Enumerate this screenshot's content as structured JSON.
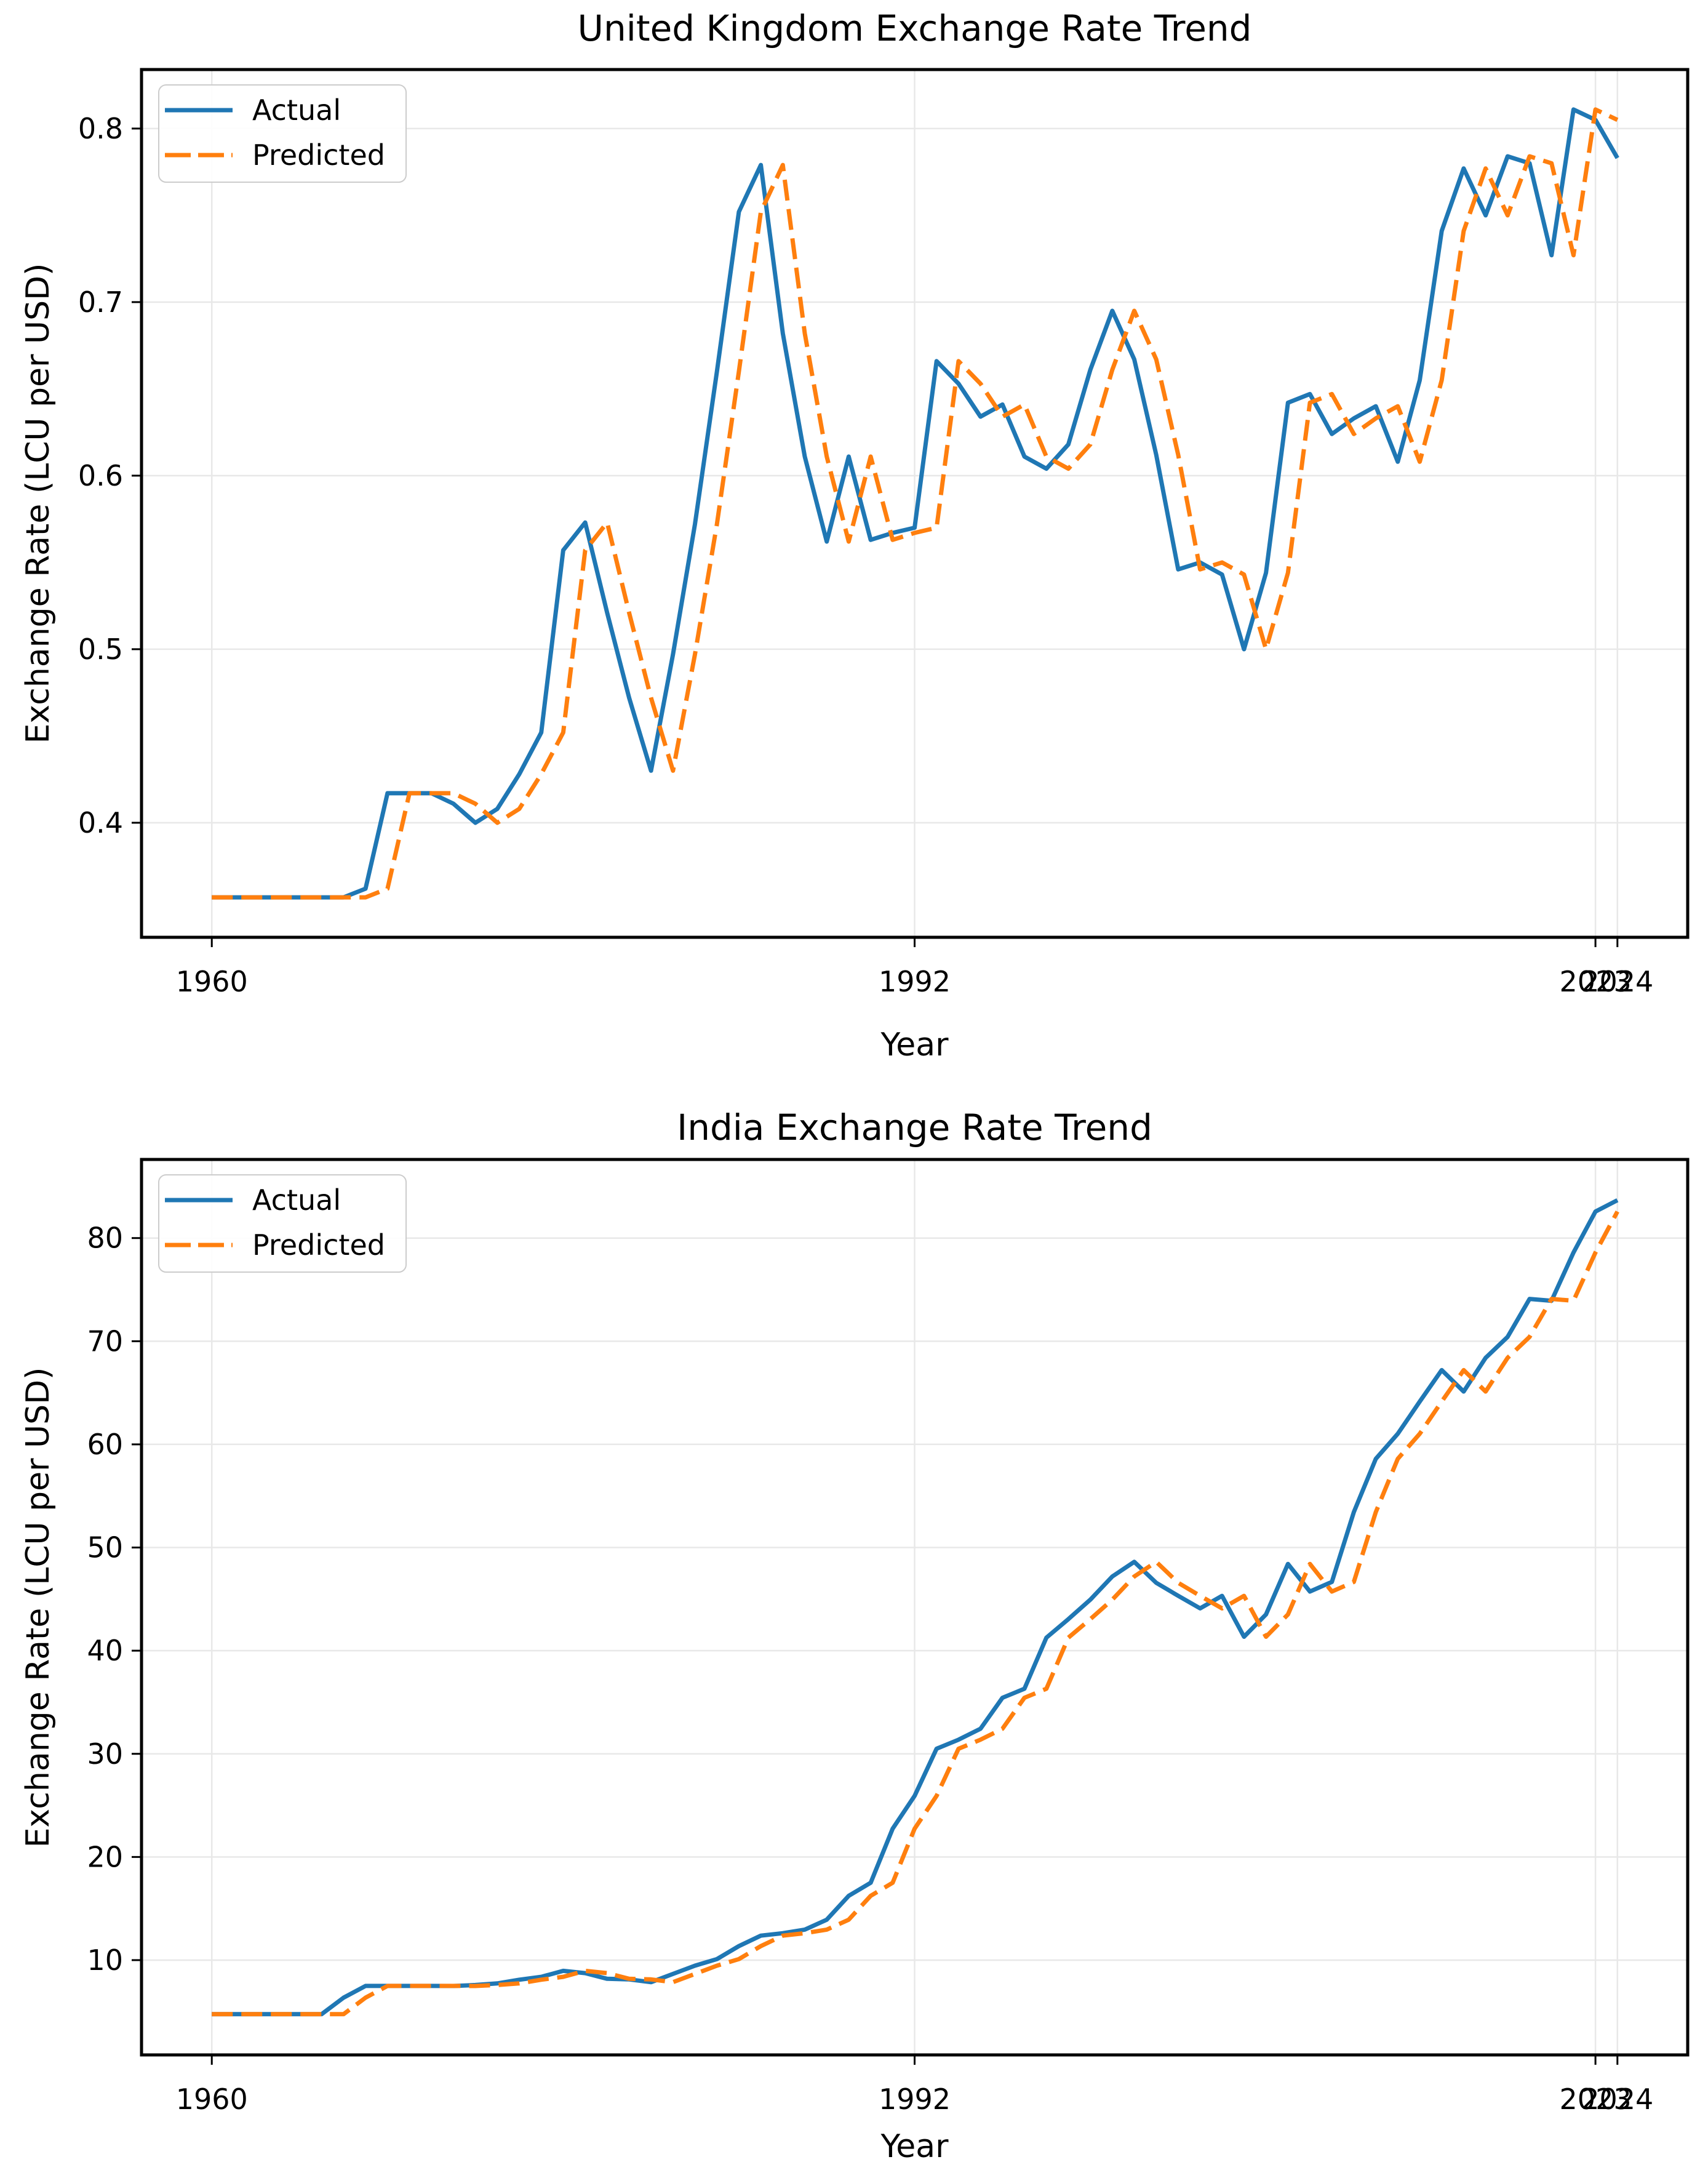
{
  "figure": {
    "background": "#ffffff",
    "grid_color": "#e8e8e8",
    "spine_color": "#000000",
    "actual_color": "#1f77b4",
    "predicted_color": "#ff7f0e"
  },
  "chart_data": [
    {
      "type": "line",
      "title": "United Kingdom Exchange Rate Trend",
      "xlabel": "Year",
      "ylabel": "Exchange Rate (LCU per USD)",
      "grid": true,
      "legend_position": "upper left",
      "xlim": [
        1956.8,
        2027.2
      ],
      "ylim": [
        0.334,
        0.834
      ],
      "xticks": {
        "values": [
          1960,
          1992,
          2023,
          2024
        ],
        "labels": [
          "1960",
          "1992",
          "2023",
          "2024"
        ]
      },
      "yticks": {
        "values": [
          0.4,
          0.5,
          0.6,
          0.7,
          0.8
        ],
        "labels": [
          "0.4",
          "0.5",
          "0.6",
          "0.7",
          "0.8"
        ]
      },
      "years": [
        1960,
        1961,
        1962,
        1963,
        1964,
        1965,
        1966,
        1967,
        1968,
        1969,
        1970,
        1971,
        1972,
        1973,
        1974,
        1975,
        1976,
        1977,
        1978,
        1979,
        1980,
        1981,
        1982,
        1983,
        1984,
        1985,
        1986,
        1987,
        1988,
        1989,
        1990,
        1991,
        1992,
        1993,
        1994,
        1995,
        1996,
        1997,
        1998,
        1999,
        2000,
        2001,
        2002,
        2003,
        2004,
        2005,
        2006,
        2007,
        2008,
        2009,
        2010,
        2011,
        2012,
        2013,
        2014,
        2015,
        2016,
        2017,
        2018,
        2019,
        2020,
        2021,
        2022,
        2023,
        2024
      ],
      "series": [
        {
          "name": "Actual",
          "color": "#1f77b4",
          "line_style": "solid",
          "values": [
            0.357,
            0.357,
            0.357,
            0.357,
            0.357,
            0.357,
            0.357,
            0.362,
            0.417,
            0.417,
            0.417,
            0.411,
            0.4,
            0.408,
            0.428,
            0.452,
            0.557,
            0.573,
            0.521,
            0.472,
            0.43,
            0.497,
            0.572,
            0.66,
            0.752,
            0.779,
            0.682,
            0.611,
            0.562,
            0.611,
            0.563,
            0.567,
            0.57,
            0.666,
            0.653,
            0.634,
            0.641,
            0.611,
            0.604,
            0.618,
            0.661,
            0.695,
            0.667,
            0.612,
            0.546,
            0.55,
            0.543,
            0.5,
            0.544,
            0.642,
            0.647,
            0.624,
            0.633,
            0.64,
            0.608,
            0.655,
            0.741,
            0.777,
            0.75,
            0.784,
            0.78,
            0.727,
            0.811,
            0.805,
            0.783
          ]
        },
        {
          "name": "Predicted",
          "color": "#ff7f0e",
          "line_style": "dashed",
          "values": [
            0.357,
            0.357,
            0.357,
            0.357,
            0.357,
            0.357,
            0.357,
            0.357,
            0.362,
            0.417,
            0.417,
            0.417,
            0.411,
            0.4,
            0.408,
            0.428,
            0.452,
            0.557,
            0.573,
            0.521,
            0.472,
            0.43,
            0.497,
            0.572,
            0.66,
            0.752,
            0.779,
            0.682,
            0.611,
            0.562,
            0.611,
            0.563,
            0.567,
            0.57,
            0.666,
            0.653,
            0.634,
            0.641,
            0.611,
            0.604,
            0.618,
            0.661,
            0.695,
            0.667,
            0.612,
            0.546,
            0.55,
            0.543,
            0.5,
            0.544,
            0.642,
            0.647,
            0.624,
            0.633,
            0.64,
            0.608,
            0.655,
            0.741,
            0.777,
            0.75,
            0.784,
            0.78,
            0.727,
            0.811,
            0.805
          ]
        }
      ]
    },
    {
      "type": "line",
      "title": "India Exchange Rate Trend",
      "xlabel": "Year",
      "ylabel": "Exchange Rate (LCU per USD)",
      "grid": true,
      "legend_position": "upper left",
      "xlim": [
        1956.8,
        2027.2
      ],
      "ylim": [
        0.81,
        87.62
      ],
      "xticks": {
        "values": [
          1960,
          1992,
          2023,
          2024
        ],
        "labels": [
          "1960",
          "1992",
          "2023",
          "2024"
        ]
      },
      "yticks": {
        "values": [
          10,
          20,
          30,
          40,
          50,
          60,
          70,
          80
        ],
        "labels": [
          "10",
          "20",
          "30",
          "40",
          "50",
          "60",
          "70",
          "80"
        ]
      },
      "years": [
        1960,
        1961,
        1962,
        1963,
        1964,
        1965,
        1966,
        1967,
        1968,
        1969,
        1970,
        1971,
        1972,
        1973,
        1974,
        1975,
        1976,
        1977,
        1978,
        1979,
        1980,
        1981,
        1982,
        1983,
        1984,
        1985,
        1986,
        1987,
        1988,
        1989,
        1990,
        1991,
        1992,
        1993,
        1994,
        1995,
        1996,
        1997,
        1998,
        1999,
        2000,
        2001,
        2002,
        2003,
        2004,
        2005,
        2006,
        2007,
        2008,
        2009,
        2010,
        2011,
        2012,
        2013,
        2014,
        2015,
        2016,
        2017,
        2018,
        2019,
        2020,
        2021,
        2022,
        2023,
        2024
      ],
      "series": [
        {
          "name": "Actual",
          "color": "#1f77b4",
          "line_style": "solid",
          "values": [
            4.76,
            4.76,
            4.76,
            4.76,
            4.76,
            4.76,
            6.36,
            7.5,
            7.5,
            7.5,
            7.5,
            7.49,
            7.59,
            7.74,
            8.1,
            8.38,
            8.96,
            8.74,
            8.19,
            8.13,
            7.86,
            8.66,
            9.46,
            10.1,
            11.36,
            12.37,
            12.61,
            12.96,
            13.92,
            16.23,
            17.5,
            22.74,
            25.92,
            30.49,
            31.37,
            32.43,
            35.43,
            36.31,
            41.26,
            43.06,
            44.94,
            47.19,
            48.61,
            46.58,
            45.32,
            44.1,
            45.31,
            41.35,
            43.51,
            48.41,
            45.73,
            46.67,
            53.44,
            58.6,
            61.03,
            64.15,
            67.2,
            65.12,
            68.39,
            70.42,
            74.1,
            73.92,
            78.6,
            82.57,
            83.67
          ]
        },
        {
          "name": "Predicted",
          "color": "#ff7f0e",
          "line_style": "dashed",
          "values": [
            4.76,
            4.76,
            4.76,
            4.76,
            4.76,
            4.76,
            4.76,
            6.36,
            7.5,
            7.5,
            7.5,
            7.5,
            7.49,
            7.59,
            7.74,
            8.1,
            8.38,
            8.96,
            8.74,
            8.19,
            8.13,
            7.86,
            8.66,
            9.46,
            10.1,
            11.36,
            12.37,
            12.61,
            12.96,
            13.92,
            16.23,
            17.5,
            22.74,
            25.92,
            30.49,
            31.37,
            32.43,
            35.43,
            36.31,
            41.26,
            43.06,
            44.94,
            47.19,
            48.61,
            46.58,
            45.32,
            44.1,
            45.31,
            41.35,
            43.51,
            48.41,
            45.73,
            46.67,
            53.44,
            58.6,
            61.03,
            64.15,
            67.2,
            65.12,
            68.39,
            70.42,
            74.1,
            73.92,
            78.6,
            82.57
          ]
        }
      ]
    }
  ]
}
